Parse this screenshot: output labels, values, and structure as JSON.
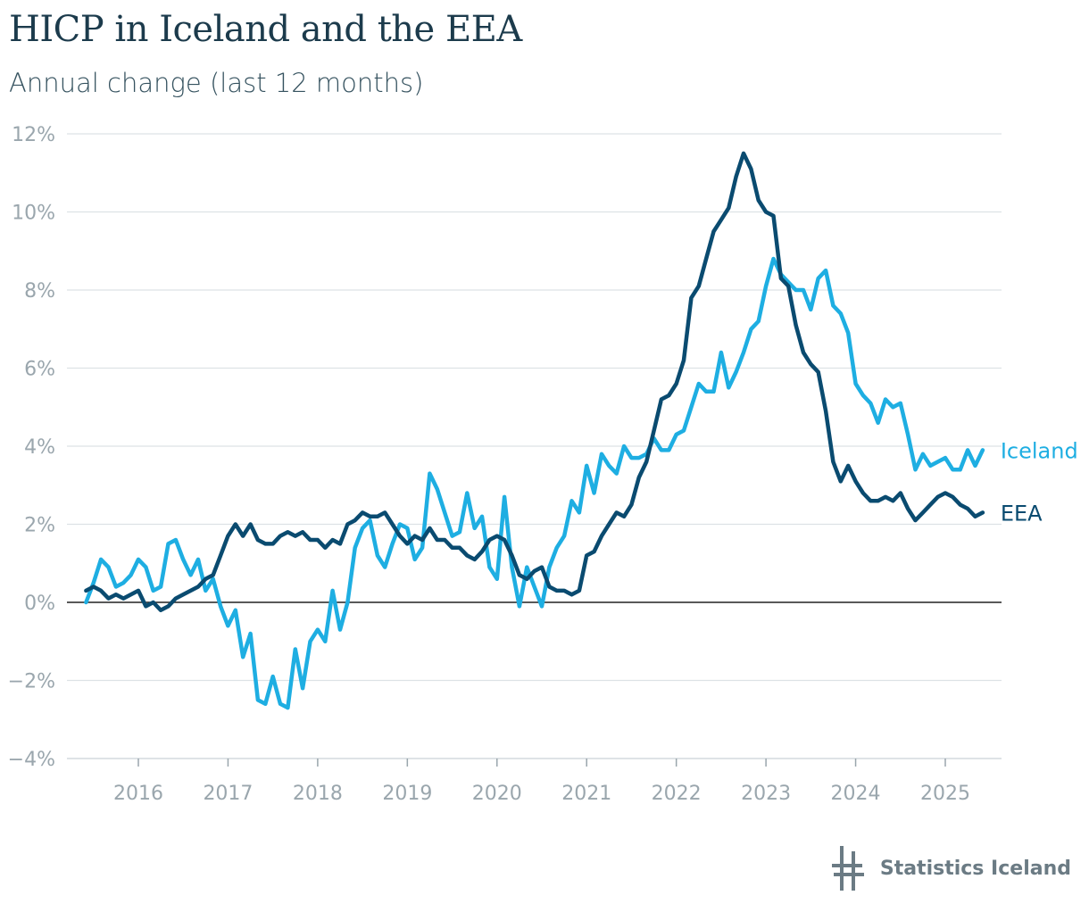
{
  "chart_data": {
    "type": "line",
    "title": "HICP in Iceland and the EEA",
    "subtitle": "Annual change (last 12 months)",
    "xlabel": "",
    "ylabel": "",
    "x_ticks": [
      "2016",
      "2017",
      "2018",
      "2019",
      "2020",
      "2021",
      "2022",
      "2023",
      "2024",
      "2025"
    ],
    "y_ticks": [
      "−4%",
      "−2%",
      "0%",
      "2%",
      "4%",
      "6%",
      "8%",
      "10%",
      "12%"
    ],
    "ylim": [
      -4,
      12
    ],
    "grid": true,
    "colors": {
      "Iceland": "#1eaee2",
      "EEA": "#0a4b70",
      "grid": "#dde2e5",
      "zero_line": "#222222"
    },
    "x_start": "2015-06",
    "x_end": "2025-06",
    "series": [
      {
        "name": "Iceland",
        "values": [
          0.0,
          0.5,
          1.1,
          0.9,
          0.4,
          0.5,
          0.7,
          1.1,
          0.9,
          0.3,
          0.4,
          1.5,
          1.6,
          1.1,
          0.7,
          1.1,
          0.3,
          0.6,
          -0.1,
          -0.6,
          -0.2,
          -1.4,
          -0.8,
          -2.5,
          -2.6,
          -1.9,
          -2.6,
          -2.7,
          -1.2,
          -2.2,
          -1.0,
          -0.7,
          -1.0,
          0.3,
          -0.7,
          0.0,
          1.4,
          1.9,
          2.1,
          1.2,
          0.9,
          1.5,
          2.0,
          1.9,
          1.1,
          1.4,
          3.3,
          2.9,
          2.3,
          1.7,
          1.8,
          2.8,
          1.9,
          2.2,
          0.9,
          0.6,
          2.7,
          0.9,
          -0.1,
          0.9,
          0.4,
          -0.1,
          0.9,
          1.4,
          1.7,
          2.6,
          2.3,
          3.5,
          2.8,
          3.8,
          3.5,
          3.3,
          4.0,
          3.7,
          3.7,
          3.8,
          4.2,
          3.9,
          3.9,
          4.3,
          4.4,
          5.0,
          5.6,
          5.4,
          5.4,
          6.4,
          5.5,
          5.9,
          6.4,
          7.0,
          7.2,
          8.1,
          8.8,
          8.4,
          8.2,
          8.0,
          8.0,
          7.5,
          8.3,
          8.5,
          7.6,
          7.4,
          6.9,
          5.6,
          5.3,
          5.1,
          4.6,
          5.2,
          5.0,
          5.1,
          4.3,
          3.4,
          3.8,
          3.5,
          3.6,
          3.7,
          3.4,
          3.4,
          3.9,
          3.5,
          3.9
        ]
      },
      {
        "name": "EEA",
        "values": [
          0.3,
          0.4,
          0.3,
          0.1,
          0.2,
          0.1,
          0.2,
          0.3,
          -0.1,
          0.0,
          -0.2,
          -0.1,
          0.1,
          0.2,
          0.3,
          0.4,
          0.6,
          0.7,
          1.2,
          1.7,
          2.0,
          1.7,
          2.0,
          1.6,
          1.5,
          1.5,
          1.7,
          1.8,
          1.7,
          1.8,
          1.6,
          1.6,
          1.4,
          1.6,
          1.5,
          2.0,
          2.1,
          2.3,
          2.2,
          2.2,
          2.3,
          2.0,
          1.7,
          1.5,
          1.7,
          1.6,
          1.9,
          1.6,
          1.6,
          1.4,
          1.4,
          1.2,
          1.1,
          1.3,
          1.6,
          1.7,
          1.6,
          1.2,
          0.7,
          0.6,
          0.8,
          0.9,
          0.4,
          0.3,
          0.3,
          0.2,
          0.3,
          1.2,
          1.3,
          1.7,
          2.0,
          2.3,
          2.2,
          2.5,
          3.2,
          3.6,
          4.4,
          5.2,
          5.3,
          5.6,
          6.2,
          7.8,
          8.1,
          8.8,
          9.5,
          9.8,
          10.1,
          10.9,
          11.5,
          11.1,
          10.3,
          10.0,
          9.9,
          8.3,
          8.1,
          7.1,
          6.4,
          6.1,
          5.9,
          4.9,
          3.6,
          3.1,
          3.5,
          3.1,
          2.8,
          2.6,
          2.6,
          2.7,
          2.6,
          2.8,
          2.4,
          2.1,
          2.3,
          2.5,
          2.7,
          2.8,
          2.7,
          2.5,
          2.4,
          2.2,
          2.3
        ]
      }
    ]
  },
  "branding": {
    "name": "Statistics Iceland",
    "logo_icon": "statistics-iceland-logo-icon"
  }
}
